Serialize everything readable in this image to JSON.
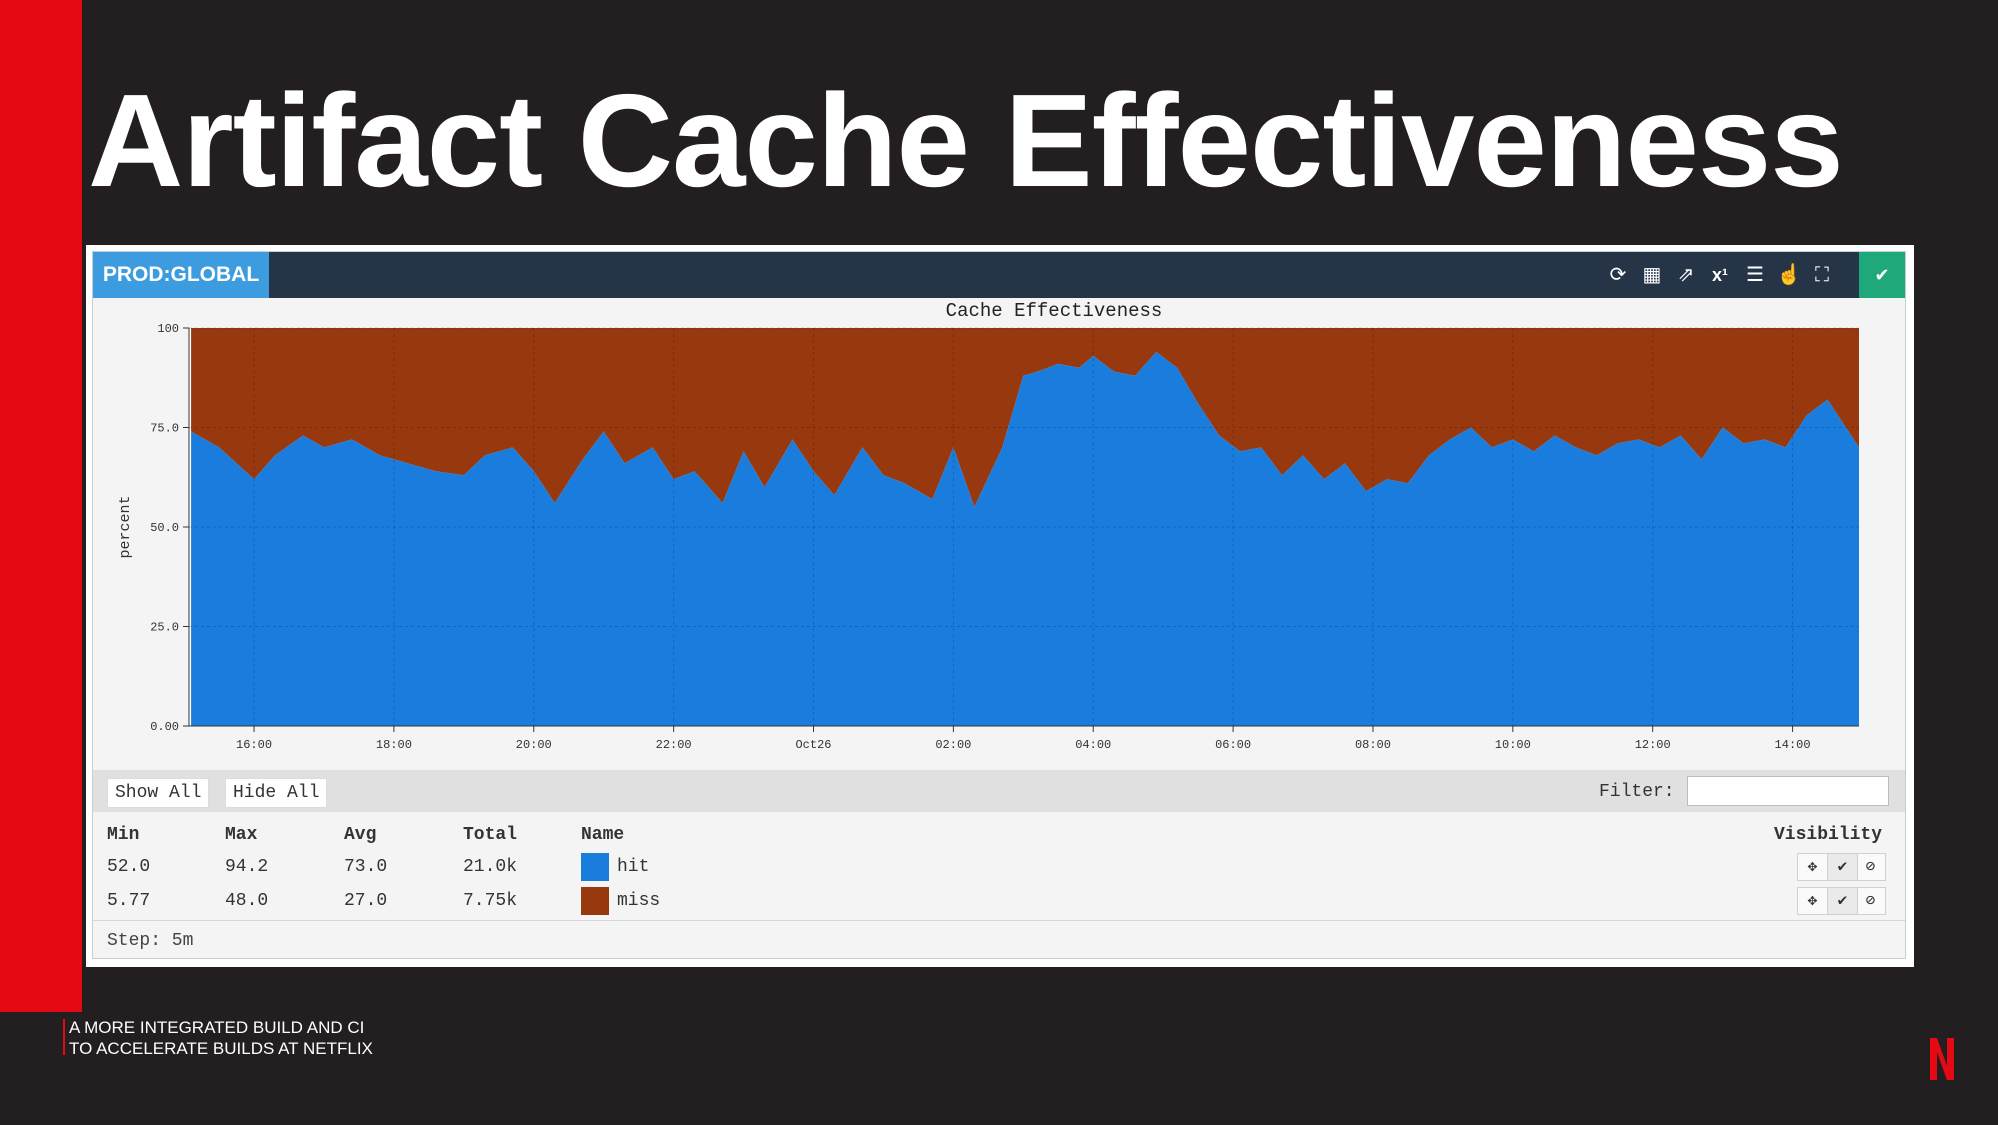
{
  "slide": {
    "title": "Artifact Cache Effectiveness",
    "footer_line1": "A MORE INTEGRATED BUILD AND CI",
    "footer_line2": "TO ACCELERATE BUILDS AT NETFLIX",
    "logo_letter": "N"
  },
  "panel": {
    "badge": "PROD:GLOBAL",
    "tools": [
      "refresh-icon",
      "layout-icon",
      "external-link-icon",
      "superscript-icon",
      "list-icon",
      "pointer-icon",
      "fullscreen-icon"
    ],
    "tool_glyphs": [
      "⟳",
      "▦",
      "⇗",
      "x¹",
      "☰",
      "☝",
      "⛶"
    ],
    "check_glyph": "✔"
  },
  "legend": {
    "show_all": "Show All",
    "hide_all": "Hide All",
    "filter_label": "Filter:",
    "filter_value": "",
    "headers": {
      "min": "Min",
      "max": "Max",
      "avg": "Avg",
      "total": "Total",
      "name": "Name",
      "visibility": "Visibility"
    },
    "rows": [
      {
        "min": "52.0",
        "max": "94.2",
        "avg": "73.0",
        "total": "21.0k",
        "name": "hit",
        "color": "#1a7cdc"
      },
      {
        "min": "5.77",
        "max": "48.0",
        "avg": "27.0",
        "total": "7.75k",
        "name": "miss",
        "color": "#97380f"
      }
    ],
    "vis_glyphs": [
      "✥",
      "✔",
      "⃠"
    ],
    "step": "Step: 5m"
  },
  "chart_data": {
    "type": "area",
    "stacked": true,
    "title": "Cache Effectiveness",
    "ylabel": "percent",
    "xlabel": "",
    "ylim": [
      0,
      100
    ],
    "y_ticks": [
      "0.00",
      "25.0",
      "50.0",
      "75.0",
      "100"
    ],
    "x_ticks": [
      "16:00",
      "18:00",
      "20:00",
      "22:00",
      "Oct26",
      "02:00",
      "04:00",
      "06:00",
      "08:00",
      "10:00",
      "12:00",
      "14:00"
    ],
    "x_tick_hours": [
      16,
      18,
      20,
      22,
      24,
      26,
      28,
      30,
      32,
      34,
      36,
      38
    ],
    "x_range_hours": [
      15.07,
      38.95
    ],
    "grid": true,
    "series": [
      {
        "name": "hit",
        "color": "#1a7cdc",
        "x_hours": [
          15.1,
          15.5,
          16.0,
          16.3,
          16.7,
          17.0,
          17.4,
          17.8,
          18.2,
          18.6,
          19.0,
          19.3,
          19.7,
          20.0,
          20.3,
          20.7,
          21.0,
          21.3,
          21.7,
          22.0,
          22.3,
          22.7,
          23.0,
          23.3,
          23.7,
          24.0,
          24.3,
          24.7,
          25.0,
          25.3,
          25.7,
          26.0,
          26.3,
          26.7,
          27.0,
          27.2,
          27.5,
          27.8,
          28.0,
          28.3,
          28.6,
          28.9,
          29.2,
          29.5,
          29.8,
          30.1,
          30.4,
          30.7,
          31.0,
          31.3,
          31.6,
          31.9,
          32.2,
          32.5,
          32.8,
          33.1,
          33.4,
          33.7,
          34.0,
          34.3,
          34.6,
          34.9,
          35.2,
          35.5,
          35.8,
          36.1,
          36.4,
          36.7,
          37.0,
          37.3,
          37.6,
          37.9,
          38.2,
          38.5,
          38.8,
          38.95
        ],
        "values": [
          74,
          70,
          62,
          68,
          73,
          70,
          72,
          68,
          66,
          64,
          63,
          68,
          70,
          64,
          56,
          67,
          74,
          66,
          70,
          62,
          64,
          56,
          69,
          60,
          72,
          64,
          58,
          70,
          63,
          61,
          57,
          70,
          55,
          70,
          88,
          89,
          91,
          90,
          93,
          89,
          88,
          94,
          90,
          81,
          73,
          69,
          70,
          63,
          68,
          62,
          66,
          59,
          62,
          61,
          68,
          72,
          75,
          70,
          72,
          69,
          73,
          70,
          68,
          71,
          72,
          70,
          73,
          67,
          75,
          71,
          72,
          70,
          78,
          82,
          74,
          70
        ]
      },
      {
        "name": "miss",
        "color": "#97380f",
        "x_hours": [
          15.1,
          15.5,
          16.0,
          16.3,
          16.7,
          17.0,
          17.4,
          17.8,
          18.2,
          18.6,
          19.0,
          19.3,
          19.7,
          20.0,
          20.3,
          20.7,
          21.0,
          21.3,
          21.7,
          22.0,
          22.3,
          22.7,
          23.0,
          23.3,
          23.7,
          24.0,
          24.3,
          24.7,
          25.0,
          25.3,
          25.7,
          26.0,
          26.3,
          26.7,
          27.0,
          27.2,
          27.5,
          27.8,
          28.0,
          28.3,
          28.6,
          28.9,
          29.2,
          29.5,
          29.8,
          30.1,
          30.4,
          30.7,
          31.0,
          31.3,
          31.6,
          31.9,
          32.2,
          32.5,
          32.8,
          33.1,
          33.4,
          33.7,
          34.0,
          34.3,
          34.6,
          34.9,
          35.2,
          35.5,
          35.8,
          36.1,
          36.4,
          36.7,
          37.0,
          37.3,
          37.6,
          37.9,
          38.2,
          38.5,
          38.8,
          38.95
        ],
        "values": [
          26,
          30,
          38,
          32,
          27,
          30,
          28,
          32,
          34,
          36,
          37,
          32,
          30,
          36,
          44,
          33,
          26,
          34,
          30,
          38,
          36,
          44,
          31,
          40,
          28,
          36,
          42,
          30,
          37,
          39,
          43,
          30,
          45,
          30,
          12,
          11,
          9,
          10,
          7,
          11,
          12,
          6,
          10,
          19,
          27,
          31,
          30,
          37,
          32,
          38,
          34,
          41,
          38,
          39,
          32,
          28,
          25,
          30,
          28,
          31,
          27,
          30,
          32,
          29,
          28,
          30,
          27,
          33,
          25,
          29,
          28,
          30,
          22,
          18,
          26,
          30
        ]
      }
    ]
  }
}
